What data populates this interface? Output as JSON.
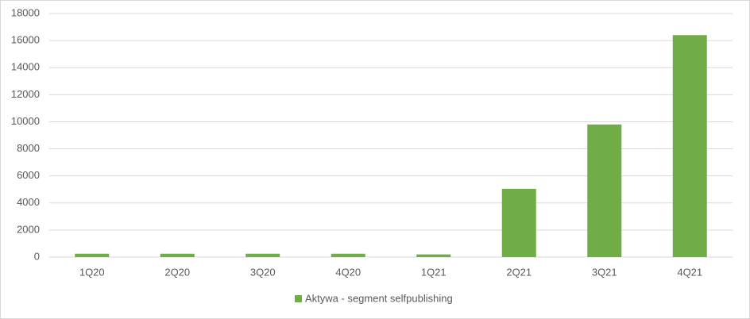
{
  "chart_data": {
    "type": "bar",
    "categories": [
      "1Q20",
      "2Q20",
      "3Q20",
      "4Q20",
      "1Q21",
      "2Q21",
      "3Q21",
      "4Q21"
    ],
    "series": [
      {
        "name": "Aktywa - segment selfpublishing",
        "color": "#70ad47",
        "values": [
          250,
          250,
          250,
          250,
          200,
          5050,
          9800,
          16400
        ]
      }
    ],
    "ylim": [
      0,
      18000
    ],
    "yticks": [
      0,
      2000,
      4000,
      6000,
      8000,
      10000,
      12000,
      14000,
      16000,
      18000
    ],
    "grid": true,
    "legend": "bottom"
  }
}
